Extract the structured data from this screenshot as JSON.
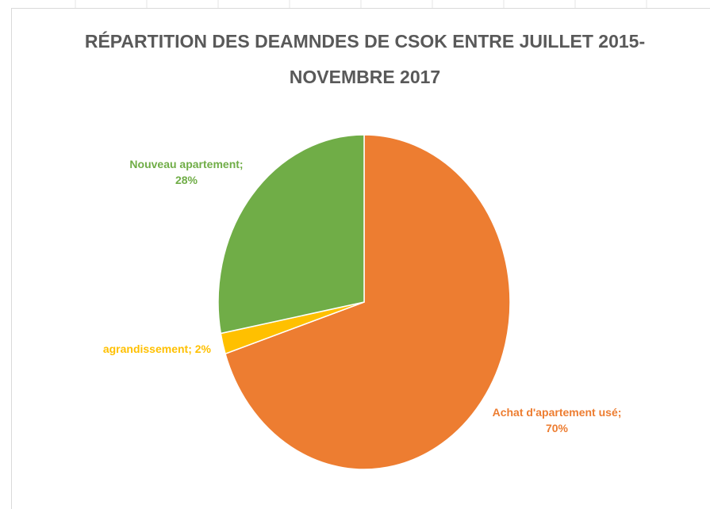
{
  "chart_data": {
    "type": "pie",
    "title": "RÉPARTITION DES DEAMNDES DE CSOK ENTRE JUILLET 2015-NOVEMBRE 2017",
    "categories": [
      "Achat d'apartement usé",
      "agrandissement",
      "Nouveau apartement"
    ],
    "values": [
      70,
      2,
      28
    ],
    "value_labels": [
      "70%",
      "2%",
      "28%"
    ],
    "label_separator": "; ",
    "colors": [
      "#ED7D31",
      "#FFC000",
      "#70AD47"
    ]
  }
}
